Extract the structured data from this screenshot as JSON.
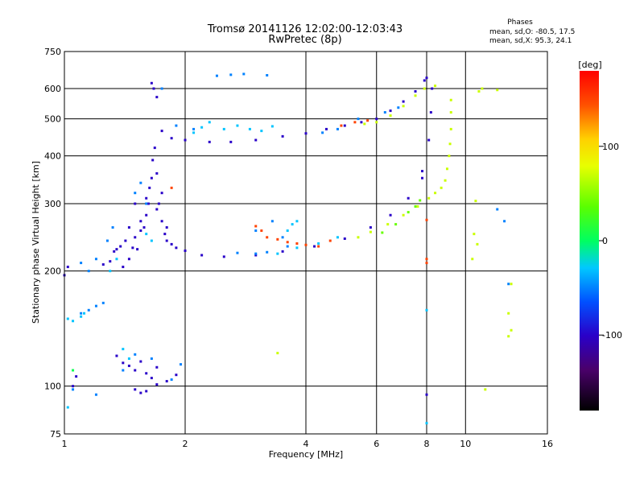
{
  "chart_data": {
    "type": "scatter",
    "title": "Tromsø 20141126 12:02:00-12:03:43",
    "subtitle": "RwPretec (8p)",
    "xlabel": "Frequency [MHz]",
    "ylabel": "Stationary phase Virtual Height [km]",
    "x_scale": "log",
    "y_scale": "log",
    "xlim": [
      1,
      16
    ],
    "ylim": [
      75,
      750
    ],
    "x_ticks": [
      1,
      2,
      4,
      6,
      8,
      10,
      16
    ],
    "x_tick_labels": [
      "1",
      "2",
      "4",
      "6",
      "8",
      "10",
      "16"
    ],
    "y_ticks": [
      75,
      100,
      200,
      300,
      400,
      500,
      600,
      750
    ],
    "y_tick_labels": [
      "75",
      "100",
      "200",
      "300",
      "400",
      "500",
      "600",
      "750"
    ],
    "grid": true,
    "phase_stats": {
      "header": "Phases",
      "o_line": "mean, sd,O:  -80.5, 17.5",
      "x_line": "mean, sd,X:  95.3, 24.1"
    },
    "colorbar": {
      "label": "[deg]",
      "range": [
        -180,
        180
      ],
      "tick_values": [
        100,
        0,
        -100
      ],
      "tick_labels": [
        "100",
        "0",
        "-100"
      ]
    },
    "series": [
      {
        "phase": -100,
        "points": [
          [
            1.0,
            195
          ],
          [
            1.02,
            205
          ],
          [
            1.05,
            100
          ],
          [
            1.07,
            106
          ],
          [
            1.25,
            208
          ],
          [
            1.3,
            212
          ],
          [
            1.33,
            225
          ],
          [
            1.35,
            228
          ],
          [
            1.38,
            232
          ],
          [
            1.4,
            205
          ],
          [
            1.42,
            240
          ],
          [
            1.45,
            215
          ],
          [
            1.48,
            230
          ],
          [
            1.5,
            245
          ],
          [
            1.52,
            228
          ],
          [
            1.55,
            255
          ],
          [
            1.58,
            260
          ],
          [
            1.6,
            280
          ],
          [
            1.62,
            300
          ],
          [
            1.63,
            330
          ],
          [
            1.65,
            350
          ],
          [
            1.66,
            390
          ],
          [
            1.68,
            420
          ],
          [
            1.7,
            360
          ],
          [
            1.72,
            300
          ],
          [
            1.75,
            270
          ],
          [
            1.78,
            250
          ],
          [
            1.8,
            240
          ],
          [
            1.85,
            235
          ],
          [
            1.9,
            230
          ],
          [
            2.0,
            226
          ],
          [
            2.2,
            220
          ],
          [
            2.5,
            218
          ],
          [
            3.0,
            220
          ],
          [
            3.5,
            225
          ],
          [
            4.2,
            232
          ],
          [
            5.0,
            243
          ],
          [
            5.8,
            260
          ],
          [
            6.5,
            280
          ],
          [
            7.2,
            310
          ],
          [
            7.8,
            365
          ],
          [
            8.1,
            440
          ],
          [
            8.2,
            520
          ],
          [
            8.25,
            600
          ],
          [
            1.65,
            620
          ],
          [
            1.67,
            600
          ],
          [
            1.7,
            570
          ],
          [
            1.75,
            465
          ],
          [
            1.85,
            445
          ],
          [
            2.0,
            440
          ],
          [
            2.3,
            435
          ],
          [
            2.6,
            435
          ],
          [
            3.0,
            440
          ],
          [
            3.5,
            450
          ],
          [
            4.0,
            458
          ],
          [
            4.5,
            470
          ],
          [
            5.0,
            480
          ],
          [
            5.5,
            490
          ],
          [
            6.0,
            500
          ],
          [
            6.5,
            525
          ],
          [
            7.0,
            555
          ],
          [
            7.5,
            590
          ],
          [
            7.9,
            630
          ],
          [
            8.0,
            640
          ],
          [
            1.35,
            120
          ],
          [
            1.4,
            115
          ],
          [
            1.45,
            113
          ],
          [
            1.5,
            110
          ],
          [
            1.55,
            116
          ],
          [
            1.6,
            108
          ],
          [
            1.65,
            105
          ],
          [
            1.7,
            112
          ],
          [
            1.8,
            103
          ],
          [
            1.9,
            107
          ],
          [
            1.5,
            98
          ],
          [
            1.55,
            96
          ],
          [
            1.6,
            97
          ],
          [
            1.7,
            101
          ],
          [
            8.0,
            95
          ],
          [
            7.8,
            350
          ],
          [
            1.55,
            270
          ],
          [
            1.6,
            310
          ],
          [
            1.7,
            290
          ],
          [
            1.75,
            320
          ],
          [
            1.8,
            260
          ],
          [
            1.5,
            300
          ],
          [
            1.45,
            260
          ]
        ]
      },
      {
        "phase": -50,
        "points": [
          [
            1.1,
            210
          ],
          [
            1.15,
            200
          ],
          [
            1.2,
            215
          ],
          [
            1.28,
            240
          ],
          [
            1.32,
            260
          ],
          [
            1.5,
            320
          ],
          [
            1.55,
            340
          ],
          [
            1.6,
            300
          ],
          [
            1.75,
            600
          ],
          [
            1.9,
            480
          ],
          [
            2.1,
            470
          ],
          [
            2.4,
            648
          ],
          [
            2.6,
            652
          ],
          [
            2.8,
            655
          ],
          [
            3.2,
            650
          ],
          [
            3.0,
            255
          ],
          [
            3.3,
            270
          ],
          [
            3.5,
            245
          ],
          [
            2.7,
            223
          ],
          [
            3.0,
            222
          ],
          [
            3.2,
            224
          ],
          [
            3.6,
            232
          ],
          [
            4.4,
            460
          ],
          [
            4.8,
            470
          ],
          [
            5.4,
            500
          ],
          [
            6.3,
            520
          ],
          [
            6.8,
            535
          ],
          [
            1.4,
            110
          ],
          [
            1.5,
            121
          ],
          [
            1.65,
            118
          ],
          [
            1.85,
            104
          ],
          [
            1.95,
            114
          ],
          [
            1.1,
            155
          ],
          [
            1.15,
            158
          ],
          [
            1.2,
            162
          ],
          [
            1.25,
            165
          ],
          [
            12.0,
            290
          ],
          [
            12.5,
            270
          ],
          [
            12.8,
            185
          ],
          [
            1.05,
            98
          ],
          [
            1.2,
            95
          ]
        ]
      },
      {
        "phase": -30,
        "points": [
          [
            1.02,
            150
          ],
          [
            1.05,
            148
          ],
          [
            1.1,
            152
          ],
          [
            1.12,
            155
          ],
          [
            1.4,
            125
          ],
          [
            1.45,
            118
          ],
          [
            1.3,
            200
          ],
          [
            1.35,
            215
          ],
          [
            1.6,
            250
          ],
          [
            1.65,
            240
          ],
          [
            2.1,
            460
          ],
          [
            2.2,
            475
          ],
          [
            2.3,
            490
          ],
          [
            2.5,
            470
          ],
          [
            2.7,
            480
          ],
          [
            2.9,
            470
          ],
          [
            3.1,
            465
          ],
          [
            3.3,
            478
          ],
          [
            3.6,
            255
          ],
          [
            3.7,
            265
          ],
          [
            3.8,
            270
          ],
          [
            3.4,
            222
          ],
          [
            3.8,
            230
          ],
          [
            4.3,
            236
          ],
          [
            4.8,
            245
          ],
          [
            1.02,
            88
          ],
          [
            8.0,
            80
          ],
          [
            8.0,
            158
          ]
        ]
      },
      {
        "phase": 5,
        "points": [
          [
            1.05,
            110
          ]
        ]
      },
      {
        "phase": 40,
        "points": [
          [
            6.2,
            252
          ],
          [
            6.7,
            265
          ],
          [
            7.2,
            285
          ],
          [
            7.5,
            295
          ],
          [
            7.7,
            306
          ]
        ]
      },
      {
        "phase": 70,
        "points": [
          [
            5.6,
            485
          ],
          [
            6.0,
            490
          ],
          [
            6.5,
            510
          ],
          [
            7.0,
            540
          ],
          [
            7.5,
            575
          ],
          [
            7.9,
            600
          ],
          [
            8.4,
            610
          ],
          [
            8.7,
            330
          ],
          [
            8.9,
            345
          ],
          [
            9.0,
            370
          ],
          [
            9.1,
            400
          ],
          [
            9.15,
            430
          ],
          [
            9.2,
            470
          ],
          [
            9.2,
            520
          ],
          [
            9.2,
            560
          ],
          [
            5.4,
            245
          ],
          [
            5.8,
            253
          ],
          [
            6.4,
            265
          ],
          [
            7.0,
            280
          ],
          [
            7.6,
            295
          ],
          [
            8.1,
            310
          ],
          [
            8.4,
            320
          ],
          [
            10.5,
            250
          ],
          [
            10.7,
            235
          ],
          [
            11.0,
            600
          ],
          [
            10.8,
            590
          ],
          [
            12.0,
            595
          ],
          [
            10.6,
            305
          ],
          [
            10.4,
            215
          ],
          [
            13.0,
            185
          ],
          [
            12.8,
            155
          ],
          [
            13.0,
            140
          ],
          [
            12.8,
            135
          ],
          [
            11.2,
            98
          ],
          [
            3.4,
            122
          ]
        ]
      },
      {
        "phase": 150,
        "points": [
          [
            3.0,
            262
          ],
          [
            3.1,
            255
          ],
          [
            3.2,
            245
          ],
          [
            3.4,
            242
          ],
          [
            3.6,
            238
          ],
          [
            3.8,
            236
          ],
          [
            4.0,
            234
          ],
          [
            4.3,
            232
          ],
          [
            4.6,
            240
          ],
          [
            4.9,
            480
          ],
          [
            5.3,
            490
          ],
          [
            5.7,
            495
          ],
          [
            1.85,
            330
          ],
          [
            8.0,
            272
          ],
          [
            8.0,
            210
          ],
          [
            8.0,
            215
          ]
        ]
      }
    ]
  }
}
